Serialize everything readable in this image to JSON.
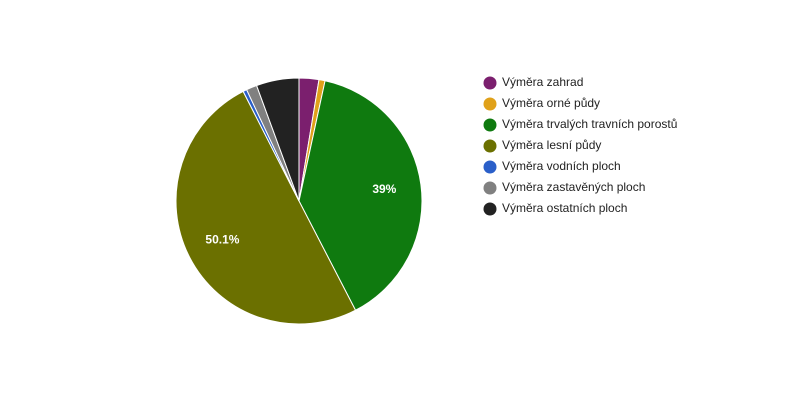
{
  "chart_data": {
    "type": "pie",
    "categories": [
      "Výměra zahrad",
      "Výměra orné půdy",
      "Výměra trvalých travních porostů",
      "Výměra lesní půdy",
      "Výměra vodních ploch",
      "Výměra zastavěných ploch",
      "Výměra ostatních ploch"
    ],
    "values": [
      2.6,
      0.8,
      39,
      50.1,
      0.5,
      1.4,
      5.6
    ],
    "value_labels": [
      null,
      null,
      "39%",
      "50.1%",
      null,
      null,
      null
    ],
    "colors": [
      "#7b1f6e",
      "#e0a11a",
      "#0f7a0f",
      "#6b7000",
      "#2a5fc9",
      "#808080",
      "#222222"
    ],
    "legend": "right"
  }
}
